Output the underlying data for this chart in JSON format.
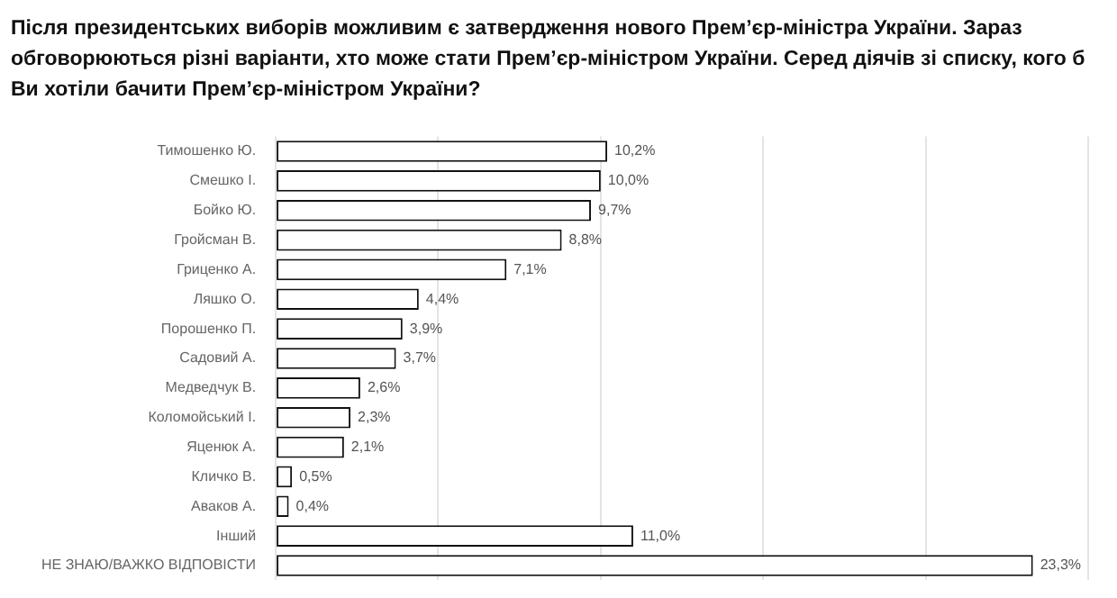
{
  "chart_data": {
    "type": "bar",
    "orientation": "horizontal",
    "title": "Після президентських виборів можливим є затвердження нового Прем’єр-міністра України. Зараз обговорюються різні варіанти, хто може стати Прем’єр-міністром України.  Серед діячів зі списку, кого б Ви хотіли бачити Прем’єр-міністром України?",
    "categories": [
      "Тимошенко Ю.",
      "Смешко І.",
      "Бойко Ю.",
      "Гройсман В.",
      "Гриценко А.",
      "Ляшко О.",
      "Порошенко П.",
      "Садовий А.",
      "Медведчук В.",
      "Коломойський І.",
      "Яценюк А.",
      "Кличко В.",
      "Аваков А.",
      "Інший",
      "НЕ ЗНАЮ/ВАЖКО ВІДПОВІСТИ"
    ],
    "values": [
      10.2,
      10.0,
      9.7,
      8.8,
      7.1,
      4.4,
      3.9,
      3.7,
      2.6,
      2.3,
      2.1,
      0.5,
      0.4,
      11.0,
      23.3
    ],
    "value_labels": [
      "10,2%",
      "10,0%",
      "9,7%",
      "8,8%",
      "7,1%",
      "4,4%",
      "3,9%",
      "3,7%",
      "2,6%",
      "2,3%",
      "2,1%",
      "0,5%",
      "0,4%",
      "11,0%",
      "23,3%"
    ],
    "color": "#ffffff",
    "grid": "x",
    "tick_labels": "y",
    "legend": false
  }
}
